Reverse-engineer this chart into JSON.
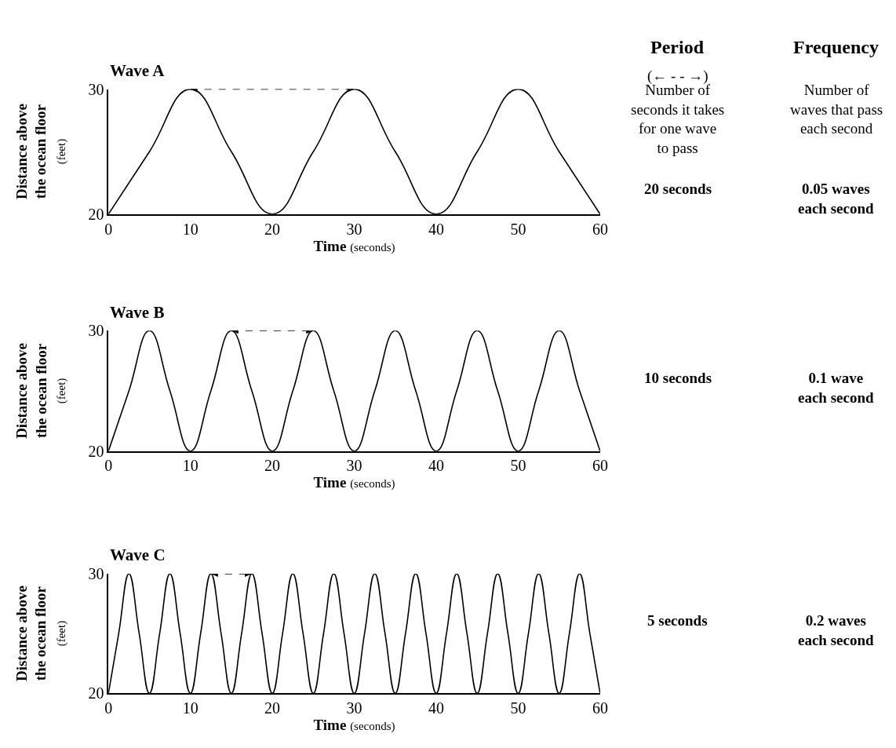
{
  "chart_data": [
    {
      "type": "line",
      "title": "Wave A",
      "xlabel": "Time (seconds)",
      "ylabel": "Distance above\nthe ocean floor\n(feet)",
      "xlim": [
        0,
        60
      ],
      "ylim": [
        20,
        30
      ],
      "xticks": [
        0,
        10,
        20,
        30,
        40,
        50,
        60
      ],
      "yticks": [
        20,
        30
      ],
      "series": [
        {
          "color": "#000000",
          "x": [
            0,
            5,
            10,
            15,
            20,
            25,
            30,
            35,
            40,
            45,
            50,
            55,
            60
          ],
          "values": [
            20,
            25,
            30,
            25,
            20,
            25,
            30,
            25,
            20,
            25,
            30,
            25,
            20
          ]
        }
      ],
      "annotations": [
        "Period",
        "Frequency",
        "(← - - →)",
        "Number of\nseconds it takes\nfor one wave\nto pass",
        "Number of\nwaves that pass\neach second",
        "20 seconds",
        "0.05 waves\neach second"
      ]
    },
    {
      "type": "line",
      "title": "Wave B",
      "xlabel": "Time (seconds)",
      "ylabel": "Distance above\nthe ocean floor\n(feet)",
      "xlim": [
        0,
        60
      ],
      "ylim": [
        20,
        30
      ],
      "xticks": [
        0,
        10,
        20,
        30,
        40,
        50,
        60
      ],
      "yticks": [
        20,
        30
      ],
      "series": [
        {
          "color": "#000000",
          "x": [
            0,
            2.5,
            5,
            7.5,
            10,
            12.5,
            15,
            17.5,
            20,
            22.5,
            25,
            27.5,
            30,
            32.5,
            35,
            37.5,
            40,
            42.5,
            45,
            47.5,
            50,
            52.5,
            55,
            57.5,
            60
          ],
          "values": [
            20,
            25,
            30,
            25,
            20,
            25,
            30,
            25,
            20,
            25,
            30,
            25,
            20,
            25,
            30,
            25,
            20,
            25,
            30,
            25,
            20,
            25,
            30,
            25,
            20
          ]
        }
      ],
      "annotations": [
        "10 seconds",
        "0.1 wave\neach second"
      ]
    },
    {
      "type": "line",
      "title": "Wave C",
      "xlabel": "Time (seconds)",
      "ylabel": "Distance above\nthe ocean floor\n(feet)",
      "xlim": [
        0,
        60
      ],
      "ylim": [
        20,
        30
      ],
      "xticks": [
        0,
        10,
        20,
        30,
        40,
        50,
        60
      ],
      "yticks": [
        20,
        30
      ],
      "series": [
        {
          "color": "#000000",
          "x": [
            0,
            1.25,
            2.5,
            3.75,
            5,
            6.25,
            7.5,
            8.75,
            10,
            11.25,
            12.5,
            13.75,
            15,
            16.25,
            17.5,
            18.75,
            20,
            21.25,
            22.5,
            23.75,
            25,
            26.25,
            27.5,
            28.75,
            30,
            31.25,
            32.5,
            33.75,
            35,
            36.25,
            37.5,
            38.75,
            40,
            41.25,
            42.5,
            43.75,
            45,
            46.25,
            47.5,
            48.75,
            50,
            51.25,
            52.5,
            53.75,
            55,
            56.25,
            57.5,
            58.75,
            60
          ],
          "values": [
            20,
            25,
            30,
            25,
            20,
            25,
            30,
            25,
            20,
            25,
            30,
            25,
            20,
            25,
            30,
            25,
            20,
            25,
            30,
            25,
            20,
            25,
            30,
            25,
            20,
            25,
            30,
            25,
            20,
            25,
            30,
            25,
            20,
            25,
            30,
            25,
            20,
            25,
            30,
            25,
            20,
            25,
            30,
            25,
            20,
            25,
            30,
            25,
            20
          ]
        }
      ],
      "annotations": [
        "5 seconds",
        "0.2 waves\neach second"
      ]
    }
  ]
}
